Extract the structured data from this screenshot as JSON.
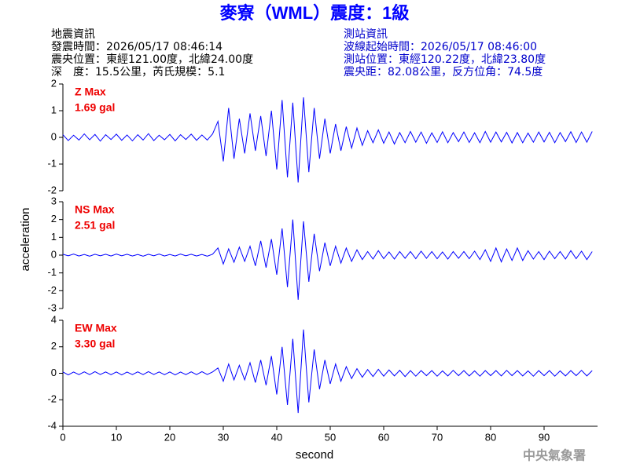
{
  "header": {
    "title": "麥寮（WML）震度：1級",
    "left": [
      "地震資訊",
      "發震時間：2026/05/17 08:46:14",
      "震央位置：東經121.00度，北緯24.00度",
      "深　度：15.5公里，芮氏規模：5.1"
    ],
    "right": [
      "測站資訊",
      "波線起始時間：2026/05/17 08:46:00",
      "測站位置：東經120.22度，北緯23.80度",
      "震央距：82.08公里，反方位角：74.5度"
    ]
  },
  "footer": "中央氣象署",
  "chart_data": [
    {
      "type": "line",
      "annotations": [
        "Z Max",
        "1.69 gal"
      ],
      "color": "#0000ff",
      "xlim": [
        0,
        100
      ],
      "ylim": [
        -2,
        2
      ],
      "yticks": [
        -2,
        -1,
        0,
        1,
        2
      ],
      "x": [
        0,
        1,
        2,
        3,
        4,
        5,
        6,
        7,
        8,
        9,
        10,
        11,
        12,
        13,
        14,
        15,
        16,
        17,
        18,
        19,
        20,
        21,
        22,
        23,
        24,
        25,
        26,
        27,
        28,
        29,
        30,
        31,
        32,
        33,
        34,
        35,
        36,
        37,
        38,
        39,
        40,
        41,
        42,
        43,
        44,
        45,
        46,
        47,
        48,
        49,
        50,
        51,
        52,
        53,
        54,
        55,
        56,
        57,
        58,
        59,
        60,
        61,
        62,
        63,
        64,
        65,
        66,
        67,
        68,
        69,
        70,
        71,
        72,
        73,
        74,
        75,
        76,
        77,
        78,
        79,
        80,
        81,
        82,
        83,
        84,
        85,
        86,
        87,
        88,
        89,
        90,
        91,
        92,
        93,
        94,
        95,
        96,
        97,
        98,
        99
      ],
      "values": [
        0.1,
        -0.12,
        0.08,
        -0.1,
        0.13,
        -0.09,
        0.11,
        -0.14,
        0.1,
        -0.08,
        0.12,
        -0.11,
        0.09,
        -0.13,
        0.1,
        -0.1,
        0.14,
        -0.12,
        0.08,
        -0.09,
        0.11,
        -0.13,
        0.1,
        -0.08,
        0.12,
        -0.11,
        0.09,
        -0.1,
        0.13,
        0.6,
        -0.9,
        1.1,
        -0.8,
        0.7,
        -0.6,
        0.9,
        -0.5,
        0.8,
        -0.7,
        1.0,
        -1.2,
        1.4,
        -1.5,
        1.3,
        -1.69,
        1.5,
        -1.3,
        1.1,
        -0.8,
        0.7,
        -0.6,
        0.5,
        -0.5,
        0.4,
        -0.4,
        0.35,
        -0.3,
        0.25,
        -0.2,
        0.28,
        -0.22,
        0.2,
        -0.25,
        0.18,
        -0.2,
        0.22,
        -0.18,
        0.2,
        -0.22,
        0.17,
        -0.19,
        0.21,
        -0.2,
        0.18,
        -0.16,
        0.2,
        -0.19,
        0.17,
        -0.2,
        0.22,
        -0.18,
        0.2,
        -0.17,
        0.19,
        -0.21,
        0.18,
        -0.2,
        0.16,
        -0.18,
        0.2,
        -0.17,
        0.19,
        -0.2,
        0.18,
        -0.16,
        0.21,
        -0.19,
        0.2,
        -0.18,
        0.22
      ]
    },
    {
      "type": "line",
      "annotations": [
        "NS Max",
        "2.51 gal"
      ],
      "ylabel": "acceleration",
      "color": "#0000ff",
      "xlim": [
        0,
        100
      ],
      "ylim": [
        -3,
        3
      ],
      "yticks": [
        -3,
        -2,
        -1,
        0,
        1,
        2,
        3
      ],
      "x": [
        0,
        1,
        2,
        3,
        4,
        5,
        6,
        7,
        8,
        9,
        10,
        11,
        12,
        13,
        14,
        15,
        16,
        17,
        18,
        19,
        20,
        21,
        22,
        23,
        24,
        25,
        26,
        27,
        28,
        29,
        30,
        31,
        32,
        33,
        34,
        35,
        36,
        37,
        38,
        39,
        40,
        41,
        42,
        43,
        44,
        45,
        46,
        47,
        48,
        49,
        50,
        51,
        52,
        53,
        54,
        55,
        56,
        57,
        58,
        59,
        60,
        61,
        62,
        63,
        64,
        65,
        66,
        67,
        68,
        69,
        70,
        71,
        72,
        73,
        74,
        75,
        76,
        77,
        78,
        79,
        80,
        81,
        82,
        83,
        84,
        85,
        86,
        87,
        88,
        89,
        90,
        91,
        92,
        93,
        94,
        95,
        96,
        97,
        98,
        99
      ],
      "values": [
        0.05,
        -0.04,
        0.06,
        -0.05,
        0.04,
        -0.06,
        0.05,
        -0.04,
        0.05,
        -0.05,
        0.06,
        -0.04,
        0.05,
        -0.05,
        0.04,
        -0.06,
        0.05,
        -0.04,
        0.06,
        -0.05,
        0.04,
        -0.05,
        0.06,
        -0.04,
        0.05,
        -0.05,
        0.04,
        -0.06,
        0.05,
        0.4,
        -0.5,
        0.35,
        -0.4,
        0.45,
        -0.35,
        0.5,
        -0.6,
        0.8,
        -0.7,
        0.9,
        -1.1,
        1.5,
        -1.8,
        2.0,
        -2.51,
        1.9,
        -1.5,
        1.2,
        -0.9,
        0.7,
        -0.6,
        0.5,
        -0.45,
        0.4,
        -0.35,
        0.3,
        -0.25,
        0.2,
        -0.22,
        0.25,
        -0.2,
        0.18,
        -0.22,
        0.2,
        -0.18,
        0.2,
        -0.2,
        0.22,
        -0.18,
        0.2,
        -0.2,
        0.18,
        -0.22,
        0.2,
        -0.18,
        0.2,
        -0.2,
        0.22,
        -0.25,
        0.3,
        -0.35,
        0.4,
        -0.38,
        0.35,
        -0.3,
        0.4,
        -0.3,
        0.25,
        -0.22,
        0.2,
        -0.25,
        0.22,
        -0.2,
        0.2,
        -0.22,
        0.25,
        -0.2,
        0.22,
        -0.25,
        0.2
      ]
    },
    {
      "type": "line",
      "annotations": [
        "EW Max",
        "3.30 gal"
      ],
      "xlabel": "second",
      "color": "#0000ff",
      "xlim": [
        0,
        100
      ],
      "xticks": [
        0,
        10,
        20,
        30,
        40,
        50,
        60,
        70,
        80,
        90
      ],
      "ylim": [
        -4,
        4
      ],
      "yticks": [
        -4,
        -2,
        0,
        2,
        4
      ],
      "x": [
        0,
        1,
        2,
        3,
        4,
        5,
        6,
        7,
        8,
        9,
        10,
        11,
        12,
        13,
        14,
        15,
        16,
        17,
        18,
        19,
        20,
        21,
        22,
        23,
        24,
        25,
        26,
        27,
        28,
        29,
        30,
        31,
        32,
        33,
        34,
        35,
        36,
        37,
        38,
        39,
        40,
        41,
        42,
        43,
        44,
        45,
        46,
        47,
        48,
        49,
        50,
        51,
        52,
        53,
        54,
        55,
        56,
        57,
        58,
        59,
        60,
        61,
        62,
        63,
        64,
        65,
        66,
        67,
        68,
        69,
        70,
        71,
        72,
        73,
        74,
        75,
        76,
        77,
        78,
        79,
        80,
        81,
        82,
        83,
        84,
        85,
        86,
        87,
        88,
        89,
        90,
        91,
        92,
        93,
        94,
        95,
        96,
        97,
        98,
        99
      ],
      "values": [
        0.1,
        -0.12,
        0.09,
        -0.1,
        0.11,
        -0.1,
        0.12,
        -0.09,
        0.1,
        -0.11,
        0.1,
        -0.12,
        0.09,
        -0.1,
        0.11,
        -0.1,
        0.12,
        -0.09,
        0.1,
        -0.11,
        0.1,
        -0.12,
        0.09,
        -0.1,
        0.11,
        -0.1,
        0.12,
        -0.09,
        0.1,
        0.4,
        -0.6,
        0.7,
        -0.5,
        0.6,
        -0.5,
        0.8,
        -0.7,
        1.0,
        -0.9,
        1.3,
        -1.6,
        2.0,
        -2.4,
        2.6,
        -3.0,
        3.3,
        -2.2,
        1.8,
        -1.2,
        1.0,
        -0.8,
        0.7,
        -0.6,
        0.5,
        -0.4,
        0.35,
        -0.3,
        0.28,
        -0.25,
        0.3,
        -0.22,
        0.25,
        -0.2,
        0.22,
        -0.25,
        0.2,
        -0.22,
        0.2,
        -0.18,
        0.2,
        -0.22,
        0.18,
        -0.2,
        0.22,
        -0.18,
        0.2,
        -0.2,
        0.18,
        -0.22,
        0.2,
        -0.18,
        0.2,
        -0.2,
        0.22,
        -0.18,
        0.2,
        -0.2,
        0.18,
        -0.22,
        0.2,
        -0.18,
        0.2,
        -0.22,
        0.18,
        -0.2,
        0.2,
        -0.18,
        0.22,
        -0.2,
        0.2
      ]
    }
  ]
}
